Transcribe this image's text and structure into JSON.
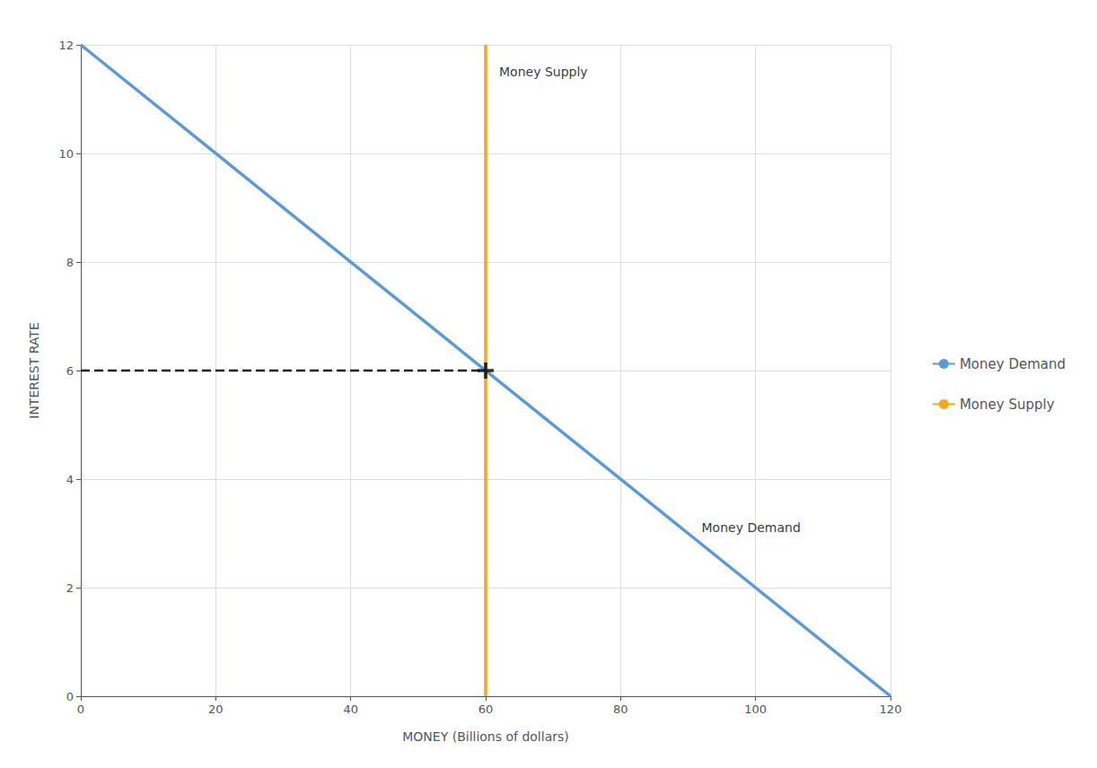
{
  "chart_data": {
    "type": "line",
    "xlabel": "MONEY (Billions of dollars)",
    "ylabel": "INTEREST RATE",
    "xlim": [
      0,
      120
    ],
    "ylim": [
      0,
      12
    ],
    "xticks": [
      0,
      20,
      40,
      60,
      80,
      100,
      120
    ],
    "yticks": [
      0,
      2,
      4,
      6,
      8,
      10,
      12
    ],
    "grid": true,
    "legend": "right",
    "series": [
      {
        "name": "Money Demand",
        "type": "line",
        "color": "#5b9bd5",
        "x": [
          0,
          120
        ],
        "values": [
          12,
          0
        ]
      },
      {
        "name": "Money Supply",
        "type": "line",
        "color": "#f5a623",
        "x": [
          60,
          60
        ],
        "values": [
          0,
          12
        ]
      },
      {
        "type": "line",
        "line_style": "dashed",
        "color": "#222222",
        "x": [
          0,
          60
        ],
        "values": [
          6,
          6
        ]
      },
      {
        "type": "scatter",
        "marker": "plus",
        "color": "#000000",
        "x": [
          60
        ],
        "values": [
          6
        ]
      }
    ],
    "annotations": [
      {
        "text": "Money Demand",
        "x": 92,
        "y": 3.1
      },
      {
        "text": "Money Supply",
        "x": 62,
        "y": 11.5
      }
    ]
  }
}
